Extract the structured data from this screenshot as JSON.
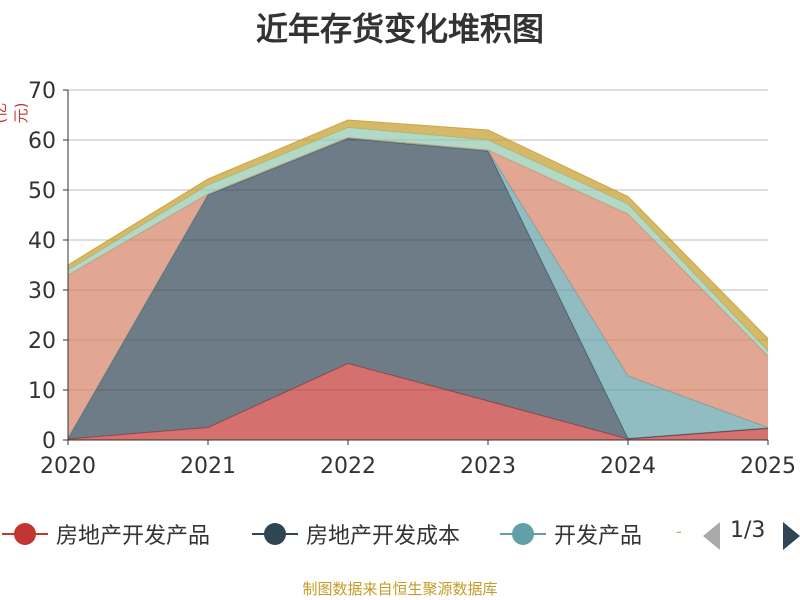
{
  "chart_data": {
    "type": "area",
    "stacked": true,
    "title": "近年存货变化堆积图",
    "unit_label": "(亿元)",
    "x": [
      "2020",
      "2021",
      "2022",
      "2023",
      "2024",
      "2025"
    ],
    "ylim": [
      0,
      70
    ],
    "yticks": [
      "0",
      "10",
      "20",
      "30",
      "40",
      "50",
      "60",
      "70"
    ],
    "grid": true,
    "series": [
      {
        "name": "房地产开发产品",
        "color": "#c23531",
        "values": [
          0.2,
          2.5,
          15.3,
          7.8,
          0.2,
          2.3
        ]
      },
      {
        "name": "房地产开发成本",
        "color": "#2f4554",
        "values": [
          0.1,
          46.5,
          45.0,
          50.0,
          0.1,
          0.1
        ]
      },
      {
        "name": "开发产品",
        "color": "#61a0a8",
        "values": [
          0.1,
          0.1,
          0.1,
          0.1,
          12.5,
          0.1
        ]
      },
      {
        "name": "",
        "color": "#d48265",
        "values": [
          32.6,
          0.1,
          0.1,
          0.1,
          32.4,
          14.3
        ]
      },
      {
        "name": "",
        "color": "#91c7ae",
        "values": [
          1.0,
          1.8,
          2.0,
          2.0,
          2.0,
          1.0
        ]
      },
      {
        "name": "",
        "color": "#c59b28",
        "values": [
          1.0,
          1.2,
          1.5,
          2.0,
          1.5,
          2.5
        ]
      }
    ]
  },
  "legend": {
    "items": [
      {
        "label": "房地产开发产品",
        "color": "#c23531"
      },
      {
        "label": "房地产开发成本",
        "color": "#2f4554"
      },
      {
        "label": "开发产品",
        "color": "#61a0a8"
      }
    ],
    "more_indicator": "-",
    "page_text": "1/3"
  },
  "source": "制图数据来自恒生聚源数据库"
}
